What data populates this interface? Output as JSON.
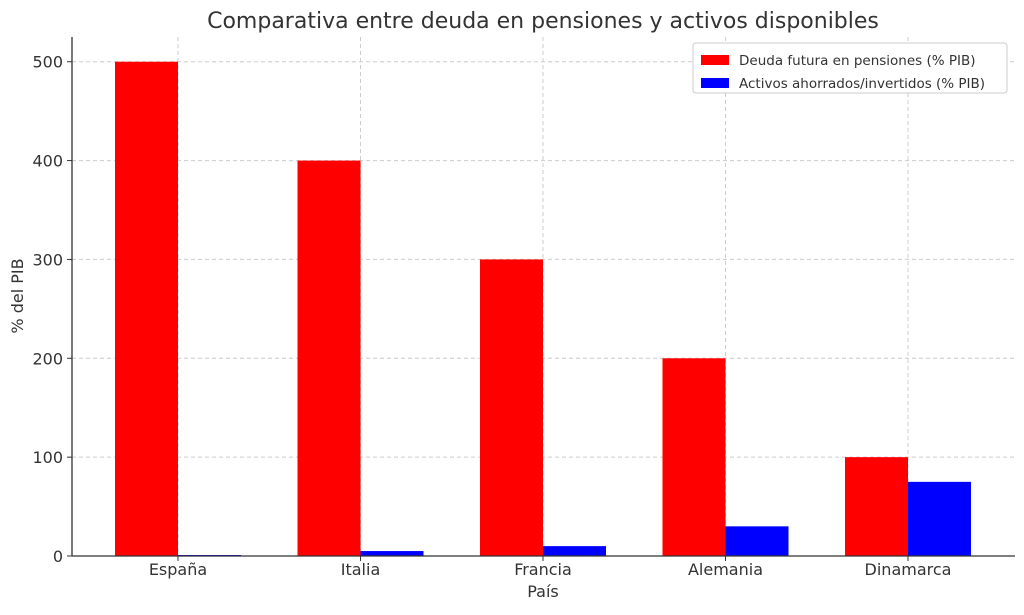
{
  "chart_data": {
    "type": "bar",
    "title": "Comparativa entre deuda en pensiones y activos disponibles",
    "xlabel": "País",
    "ylabel": "% del PIB",
    "categories": [
      "España",
      "Italia",
      "Francia",
      "Alemania",
      "Dinamarca"
    ],
    "series": [
      {
        "name": "Deuda futura en pensiones (% PIB)",
        "color": "#ff0000",
        "values": [
          500,
          400,
          300,
          200,
          100
        ]
      },
      {
        "name": "Activos ahorrados/invertidos (% PIB)",
        "color": "#0000ff",
        "values": [
          1,
          5,
          10,
          30,
          75
        ]
      }
    ],
    "ylim": [
      0,
      525
    ],
    "yticks": [
      0,
      100,
      200,
      300,
      400,
      500
    ],
    "grid": true,
    "legend_position": "top-right"
  }
}
